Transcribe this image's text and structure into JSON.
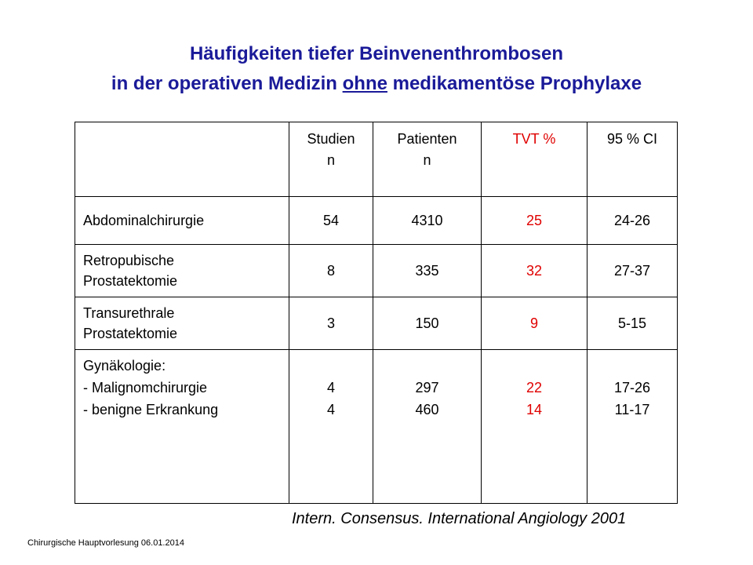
{
  "title": {
    "line1": "Häufigkeiten tiefer Beinvenenthrombosen",
    "line2_pre": "in der operativen Medizin ",
    "line2_underlined": "ohne",
    "line2_post": " medikamentöse Prophylaxe"
  },
  "table": {
    "headers": [
      {
        "l1": "",
        "l2": ""
      },
      {
        "l1": "Studien",
        "l2": "n"
      },
      {
        "l1": "Patienten",
        "l2": "n"
      },
      {
        "l1": "TVT %",
        "l2": ""
      },
      {
        "l1": "95 % CI",
        "l2": ""
      }
    ],
    "rows": [
      {
        "label": [
          "Abdominalchirurgie"
        ],
        "studien": [
          "54"
        ],
        "patienten": [
          "4310"
        ],
        "tvt": [
          "25"
        ],
        "ci": [
          "24-26"
        ]
      },
      {
        "label": [
          "Retropubische",
          "Prostatektomie"
        ],
        "studien": [
          "8"
        ],
        "patienten": [
          "335"
        ],
        "tvt": [
          "32"
        ],
        "ci": [
          "27-37"
        ]
      },
      {
        "label": [
          "Transurethrale",
          "Prostatektomie"
        ],
        "studien": [
          "3"
        ],
        "patienten": [
          "150"
        ],
        "tvt": [
          "9"
        ],
        "ci": [
          "5-15"
        ]
      },
      {
        "label": [
          "Gynäkologie:",
          "- Malignomchirurgie",
          "- benigne Erkrankung"
        ],
        "studien": [
          "4",
          "4"
        ],
        "patienten": [
          "297",
          "460"
        ],
        "tvt": [
          "22",
          "14"
        ],
        "ci": [
          "17-26",
          "11-17"
        ]
      }
    ]
  },
  "source": "Intern. Consensus. International Angiology 2001",
  "footer": "Chirurgische Hauptvorlesung 06.01.2014",
  "colors": {
    "title": "#1a1a99",
    "highlight": "#e00000"
  }
}
